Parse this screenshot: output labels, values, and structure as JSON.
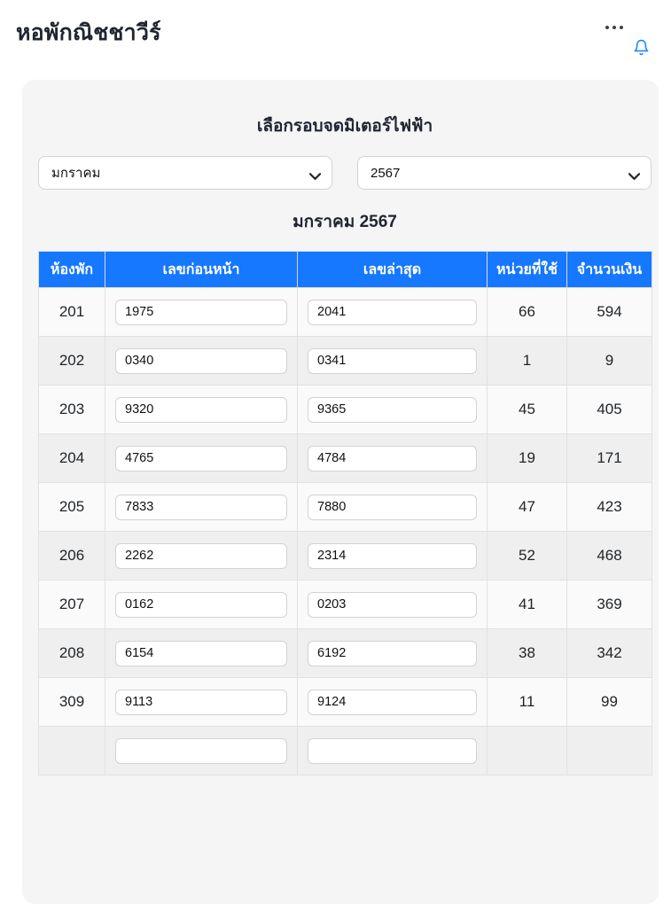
{
  "app": {
    "title": "หอพักณิชชาวีร์",
    "icons": {
      "more": "ellipsis-icon",
      "notifications": "bell-icon",
      "select_arrow": "chevron-down-icon"
    }
  },
  "colors": {
    "table_header_blue": "#1677ff",
    "bell_blue": "#1f87ff",
    "card_background": "#f5f5f6",
    "row_odd": "#fafafa",
    "row_even": "#efefef"
  },
  "meter_form": {
    "title": "เลือกรอบจดมิเตอร์ไฟฟ้า",
    "month_select": {
      "value": "มกราคม"
    },
    "year_select": {
      "value": "2567"
    },
    "period_label": "มกราคม 2567"
  },
  "table": {
    "headers": {
      "room": "ห้องพัก",
      "previous": "เลขก่อนหน้า",
      "latest": "เลขล่าสุด",
      "units": "หน่วยที่ใช้",
      "amount": "จำนวนเงิน"
    },
    "rows": [
      {
        "room": "201",
        "previous": "1975",
        "latest": "2041",
        "units": "66",
        "amount": "594"
      },
      {
        "room": "202",
        "previous": "0340",
        "latest": "0341",
        "units": "1",
        "amount": "9"
      },
      {
        "room": "203",
        "previous": "9320",
        "latest": "9365",
        "units": "45",
        "amount": "405"
      },
      {
        "room": "204",
        "previous": "4765",
        "latest": "4784",
        "units": "19",
        "amount": "171"
      },
      {
        "room": "205",
        "previous": "7833",
        "latest": "7880",
        "units": "47",
        "amount": "423"
      },
      {
        "room": "206",
        "previous": "2262",
        "latest": "2314",
        "units": "52",
        "amount": "468"
      },
      {
        "room": "207",
        "previous": "0162",
        "latest": "0203",
        "units": "41",
        "amount": "369"
      },
      {
        "room": "208",
        "previous": "6154",
        "latest": "6192",
        "units": "38",
        "amount": "342"
      },
      {
        "room": "309",
        "previous": "9113",
        "latest": "9124",
        "units": "11",
        "amount": "99"
      },
      {
        "room": "",
        "previous": "",
        "latest": "",
        "units": "",
        "amount": ""
      }
    ]
  }
}
